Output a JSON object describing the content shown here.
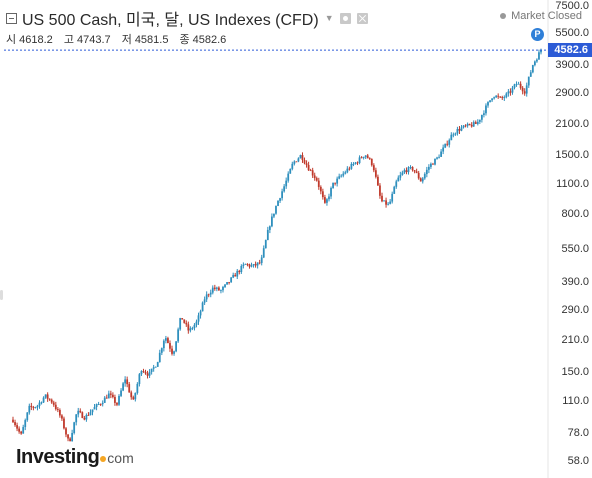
{
  "header": {
    "title": "US 500 Cash, 미국, 달, US Indexes (CFD)",
    "status": "Market Closed",
    "ohlc": [
      {
        "label": "시",
        "value": "4618.2"
      },
      {
        "label": "고",
        "value": "4743.7"
      },
      {
        "label": "저",
        "value": "4581.5"
      },
      {
        "label": "종",
        "value": "4582.6"
      }
    ]
  },
  "icons": {
    "collapse": "minus-box-icon",
    "dropdown": "chevron-down-icon",
    "settings": "gear-icon",
    "close": "close-icon",
    "status": "dot-icon"
  },
  "current_price": {
    "label": "4582.6",
    "value": 4582.6,
    "badge": "P"
  },
  "colors": {
    "up": "#2e8fbd",
    "down": "#c0392b",
    "price_tag": "#2c5bd6",
    "price_line": "#2c5bd6",
    "badge": "#2f7fd8"
  },
  "logo": {
    "brand": "Investing",
    "domain": "com"
  },
  "chart_data": {
    "type": "line",
    "style": "candlestick",
    "scale": "log",
    "grid": false,
    "legend": "none",
    "ylim": [
      55,
      5500
    ],
    "yticks": [
      {
        "value": 7500,
        "label": "7500.0"
      },
      {
        "value": 5500,
        "label": "5500.0"
      },
      {
        "value": 3900,
        "label": "3900.0"
      },
      {
        "value": 2900,
        "label": "2900.0"
      },
      {
        "value": 2100,
        "label": "2100.0"
      },
      {
        "value": 1500,
        "label": "1500.0"
      },
      {
        "value": 1100,
        "label": "1100.0"
      },
      {
        "value": 800,
        "label": "800.0"
      },
      {
        "value": 550,
        "label": "550.0"
      },
      {
        "value": 390,
        "label": "390.0"
      },
      {
        "value": 290,
        "label": "290.0"
      },
      {
        "value": 210,
        "label": "210.0"
      },
      {
        "value": 150,
        "label": "150.0"
      },
      {
        "value": 110,
        "label": "110.0"
      },
      {
        "value": 78,
        "label": "78.0"
      },
      {
        "value": 58,
        "label": "58.0"
      }
    ],
    "series": [
      {
        "values": [
          90,
          76,
          102,
          104,
          116,
          108,
          92,
          70,
          98,
          92,
          101,
          108,
          118,
          106,
          140,
          108,
          155,
          145,
          165,
          220,
          180,
          270,
          230,
          255,
          330,
          365,
          355,
          390,
          430,
          470,
          460,
          480,
          700,
          900,
          1100,
          1380,
          1500,
          1300,
          1150,
          880,
          1100,
          1200,
          1310,
          1400,
          1520,
          1350,
          920,
          880,
          1150,
          1280,
          1300,
          1140,
          1330,
          1450,
          1650,
          1900,
          2000,
          2050,
          2100,
          2450,
          2850,
          2720,
          2900,
          3230,
          2950,
          3950,
          4582.6
        ]
      }
    ]
  }
}
